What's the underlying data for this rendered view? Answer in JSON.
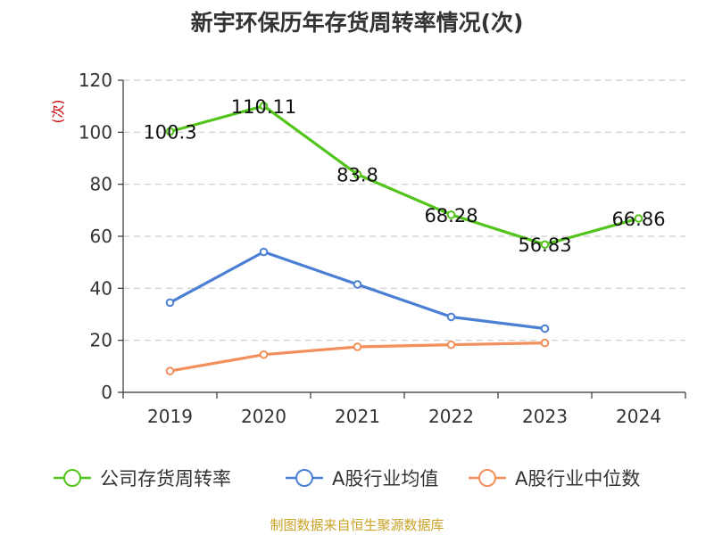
{
  "chart_data": {
    "type": "line",
    "title": "新宇环保历年存货周转率情况(次)",
    "ylabel": "(次)",
    "xlabel": "",
    "categories": [
      "2019",
      "2020",
      "2021",
      "2022",
      "2023",
      "2024"
    ],
    "ylim": [
      0,
      120
    ],
    "yticks": [
      0,
      20,
      40,
      60,
      80,
      100,
      120
    ],
    "grid": true,
    "legend_position": "bottom",
    "series": [
      {
        "name": "公司存货周转率",
        "color": "#52c41a",
        "values": [
          100.3,
          110.11,
          83.8,
          68.28,
          56.83,
          66.86
        ],
        "labels": [
          "100.3",
          "110.11",
          "83.8",
          "68.28",
          "56.83",
          "66.86"
        ]
      },
      {
        "name": "A股行业均值",
        "color": "#4a7fd4",
        "values": [
          34.5,
          54.0,
          41.5,
          29.0,
          24.5,
          null
        ]
      },
      {
        "name": "A股行业中位数",
        "color": "#f28f5c",
        "values": [
          8.2,
          14.5,
          17.5,
          18.3,
          19.0,
          null
        ]
      }
    ]
  },
  "source": "制图数据来自恒生聚源数据库"
}
